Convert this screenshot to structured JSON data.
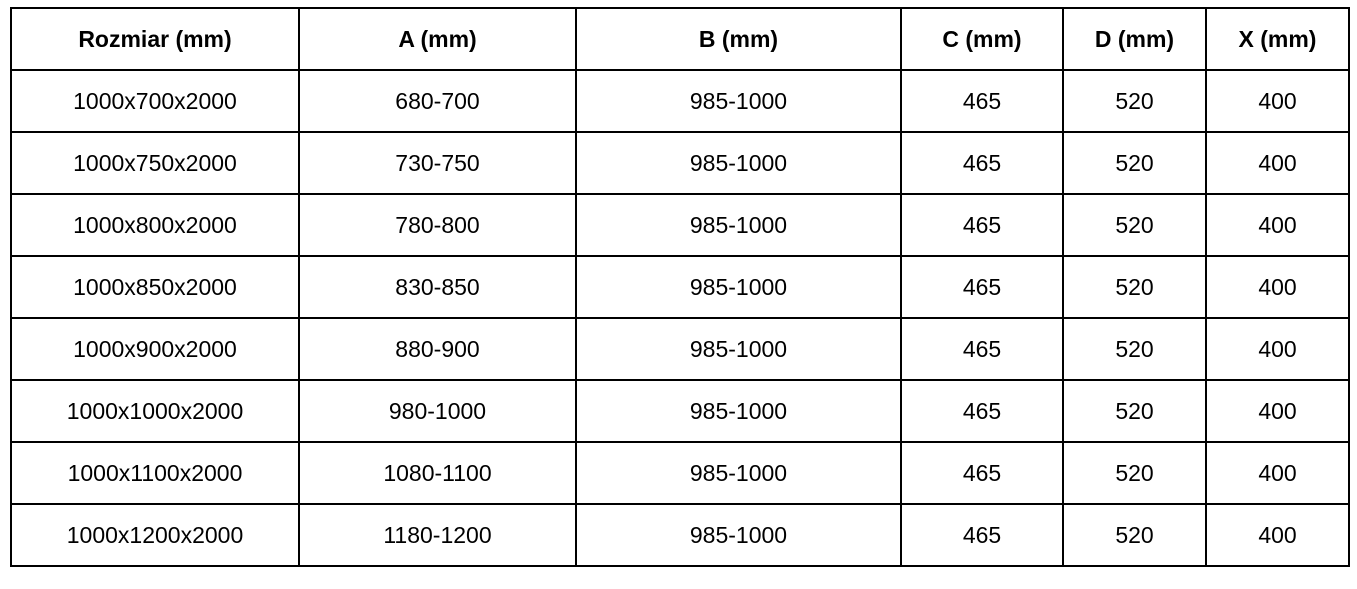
{
  "table": {
    "headers": [
      "Rozmiar (mm)",
      "A (mm)",
      "B (mm)",
      "C (mm)",
      "D (mm)",
      "X (mm)"
    ],
    "rows": [
      [
        "1000x700x2000",
        "680-700",
        "985-1000",
        "465",
        "520",
        "400"
      ],
      [
        "1000x750x2000",
        "730-750",
        "985-1000",
        "465",
        "520",
        "400"
      ],
      [
        "1000x800x2000",
        "780-800",
        "985-1000",
        "465",
        "520",
        "400"
      ],
      [
        "1000x850x2000",
        "830-850",
        "985-1000",
        "465",
        "520",
        "400"
      ],
      [
        "1000x900x2000",
        "880-900",
        "985-1000",
        "465",
        "520",
        "400"
      ],
      [
        "1000x1000x2000",
        "980-1000",
        "985-1000",
        "465",
        "520",
        "400"
      ],
      [
        "1000x1100x2000",
        "1080-1100",
        "985-1000",
        "465",
        "520",
        "400"
      ],
      [
        "1000x1200x2000",
        "1180-1200",
        "985-1000",
        "465",
        "520",
        "400"
      ]
    ]
  }
}
